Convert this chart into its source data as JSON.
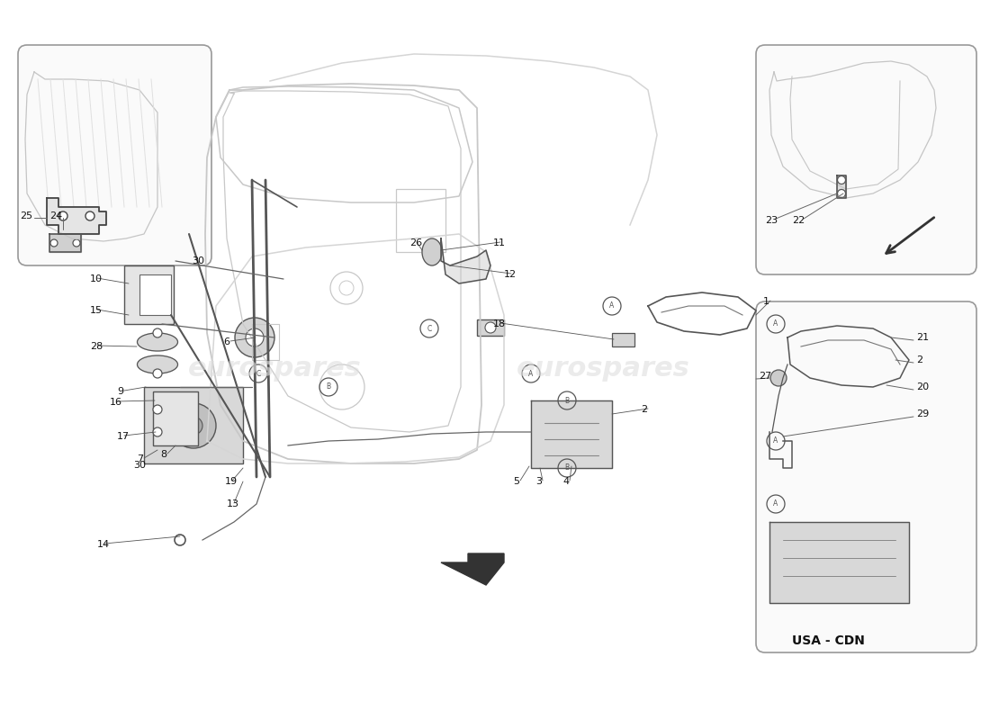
{
  "bg": "#ffffff",
  "lc": "#c8c8c8",
  "dc": "#555555",
  "wm_color": "#dedede",
  "wm_texts": [
    "eurospares",
    "eurospares"
  ],
  "usa_cdn": "USA - CDN"
}
